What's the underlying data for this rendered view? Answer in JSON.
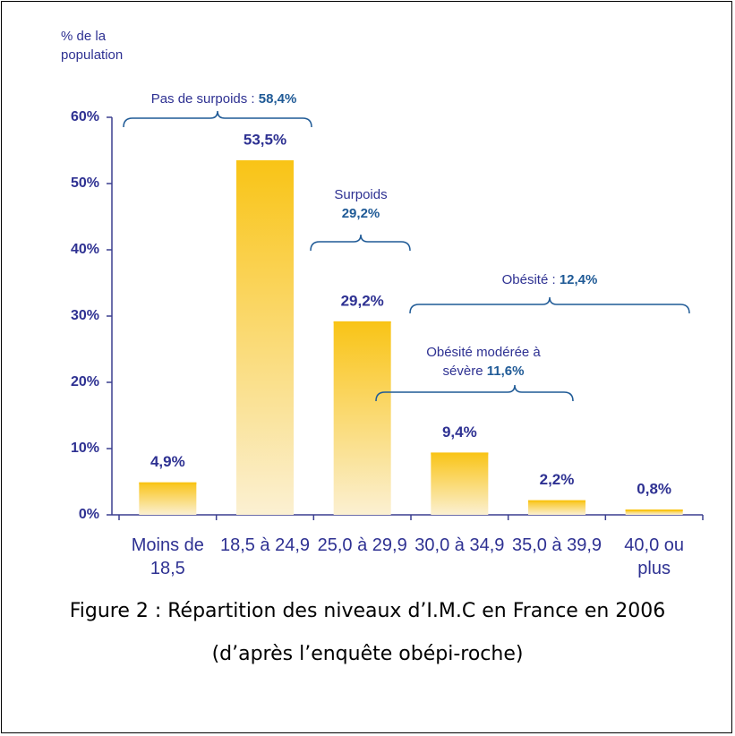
{
  "chart_data": {
    "type": "bar",
    "y_label": "% de la population",
    "categories": [
      "Moins de 18,5",
      "18,5 à 24,9",
      "25,0 à 29,9",
      "30,0 à 34,9",
      "35,0 à 39,9",
      "40,0 ou plus"
    ],
    "values": [
      4.9,
      53.5,
      29.2,
      9.4,
      2.2,
      0.8
    ],
    "value_labels": [
      "4,9%",
      "53,5%",
      "29,2%",
      "9,4%",
      "2,2%",
      "0,8%"
    ],
    "color": "#f9c416",
    "ylim": [
      0,
      60
    ],
    "yticks": [
      {
        "value": 0,
        "label": "0%"
      },
      {
        "value": 10,
        "label": "10%"
      },
      {
        "value": 20,
        "label": "20%"
      },
      {
        "value": 30,
        "label": "30%"
      },
      {
        "value": 40,
        "label": "40%"
      },
      {
        "value": 50,
        "label": "50%"
      },
      {
        "value": 60,
        "label": "60%"
      }
    ],
    "annotations": [
      {
        "label": "Pas de surpoids :",
        "value": "58,4%"
      },
      {
        "label": "Surpoids",
        "value": "29,2%"
      },
      {
        "label": "Obésité :",
        "value": "12,4%"
      },
      {
        "label": "Obésité modérée à sévère",
        "value": "11,6%"
      }
    ],
    "caption": [
      "Figure 2 : Répartition des niveaux d’I.M.C en France en 2006",
      "(d’après l’enquête obépi-roche)"
    ]
  }
}
